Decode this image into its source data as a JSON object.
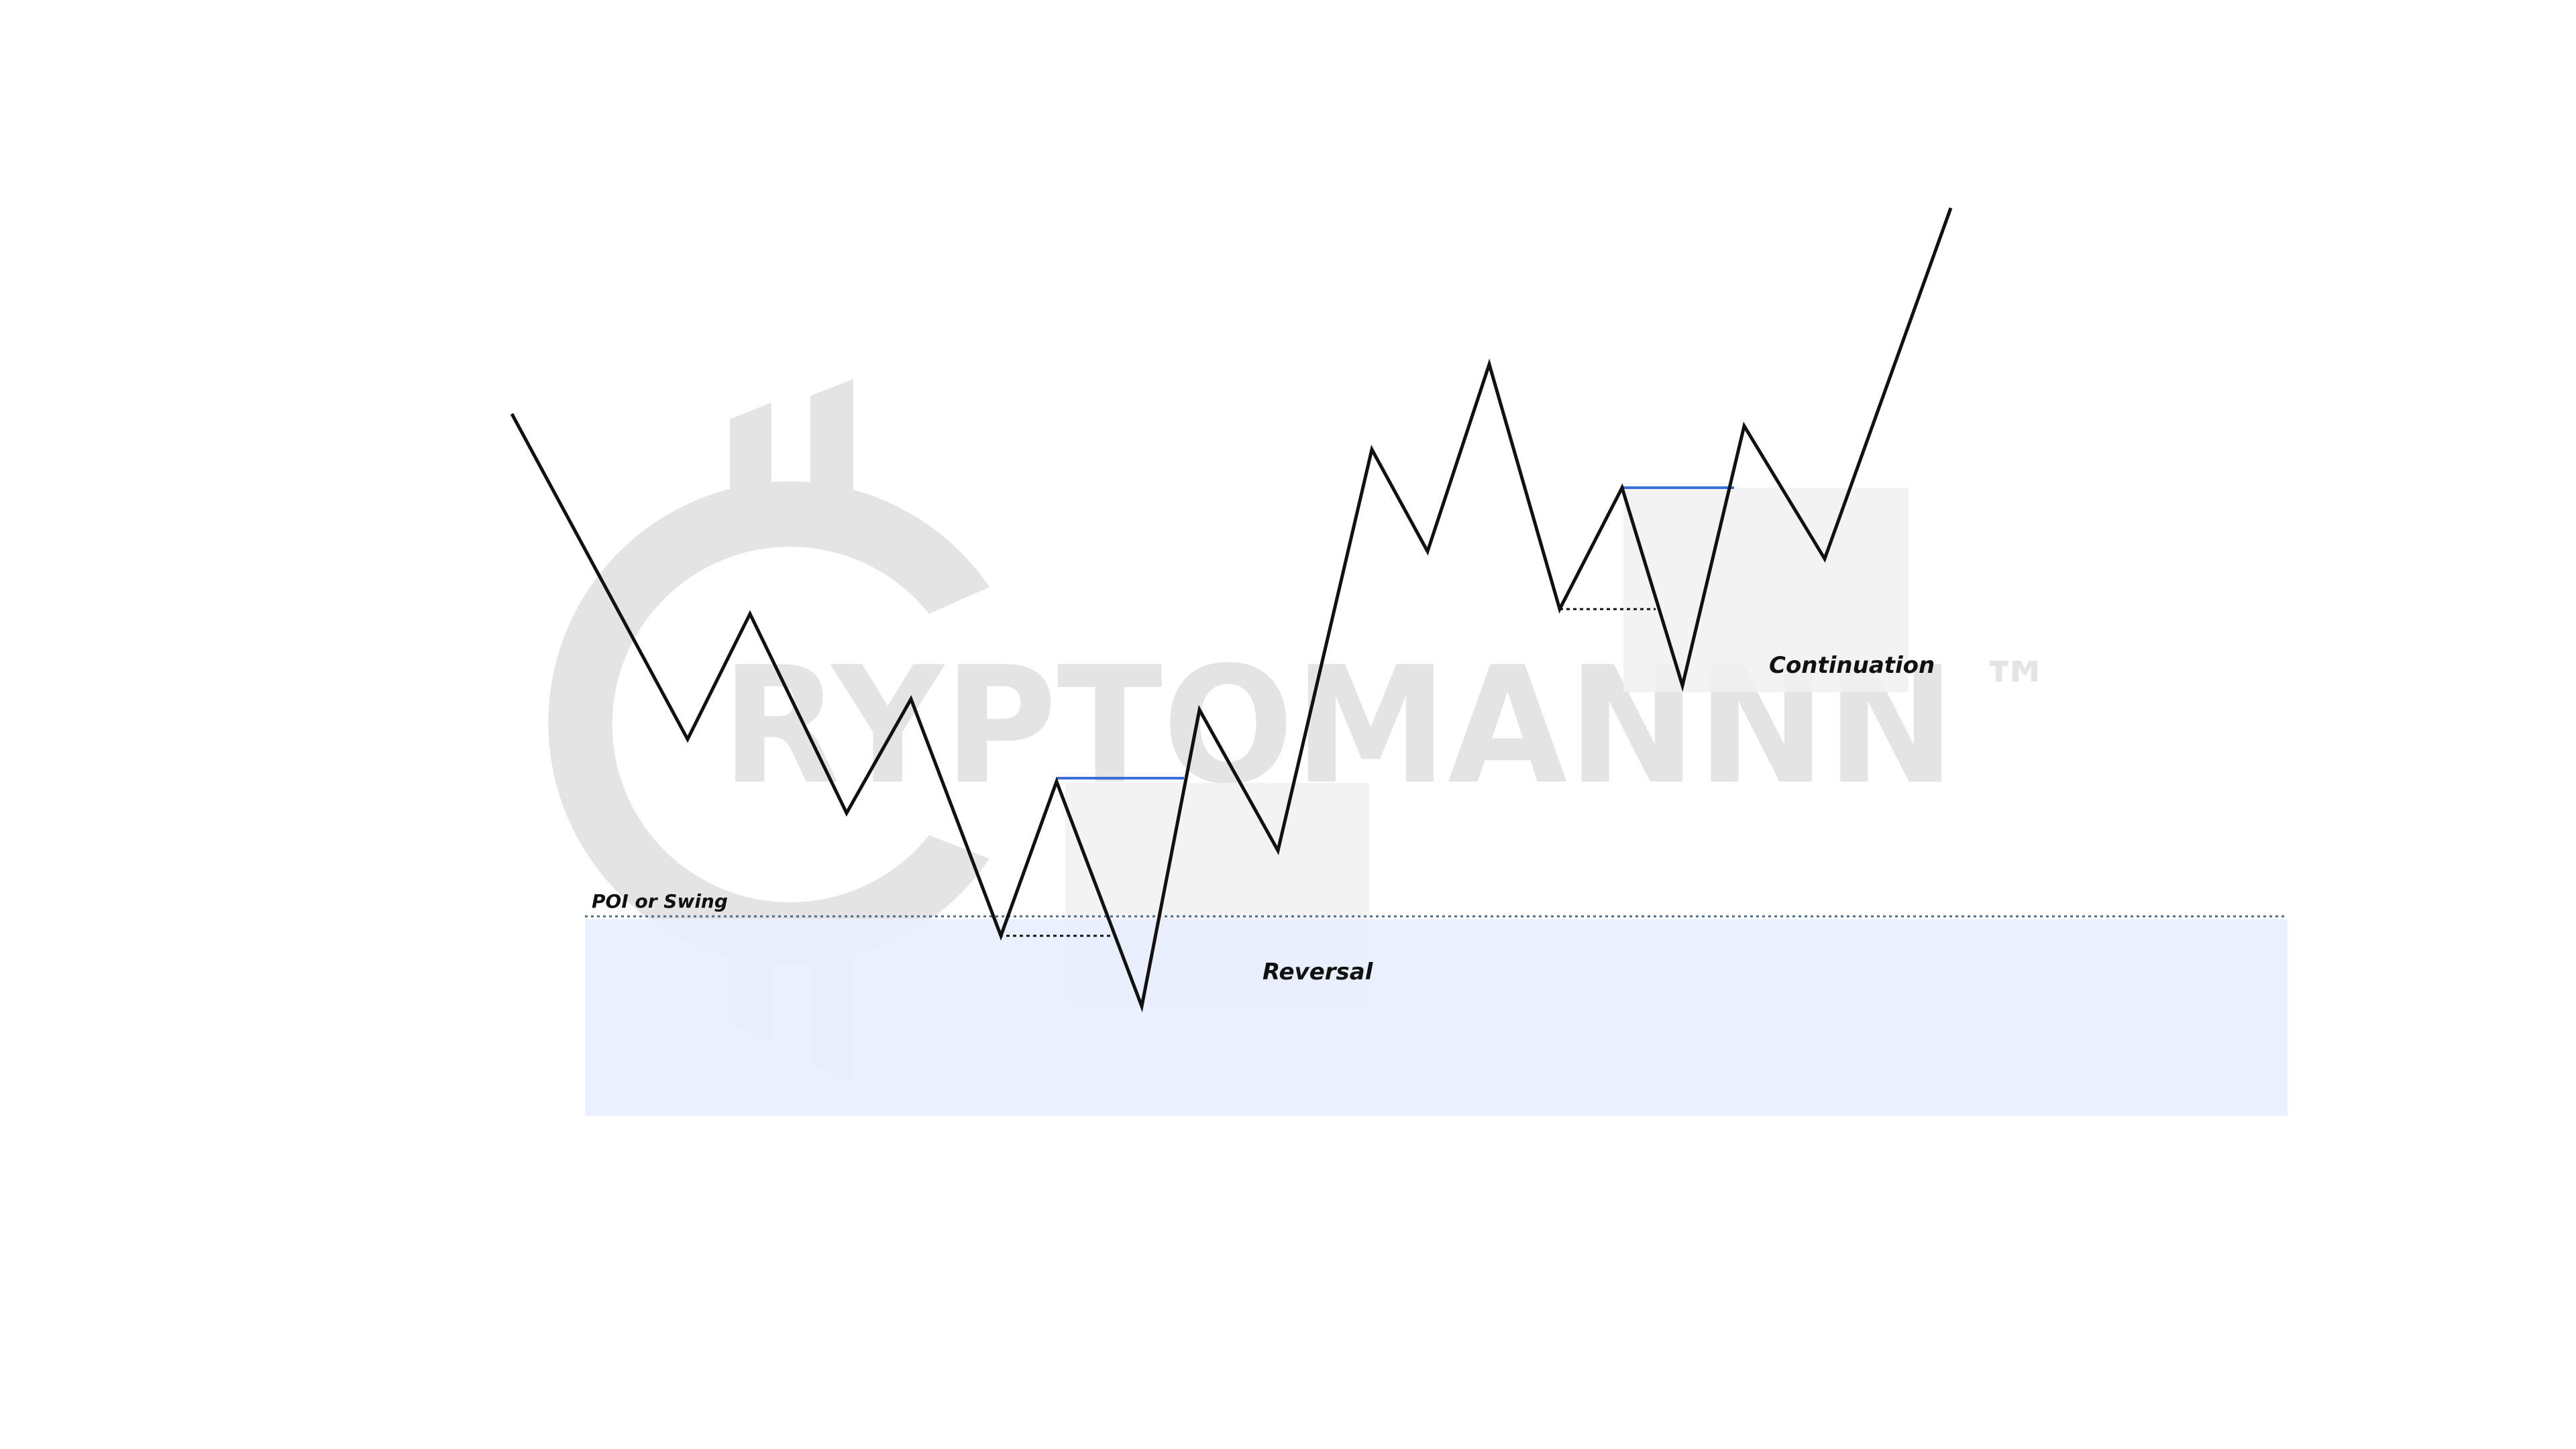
{
  "watermark": {
    "text": "RYPTOMANNN",
    "trademark": "™",
    "color": "#e4e4e4"
  },
  "labels": {
    "poi": "POI or Swing",
    "reversal": "Reversal",
    "continuation": "Continuation"
  },
  "colors": {
    "price_line": "#111111",
    "bos_line": "#3a6fd8",
    "poi_zone": "#e8eefd",
    "poi_line": "#4a6a8a",
    "structure_box": "#f1f1f1",
    "liquidity_line": "#111111"
  }
}
